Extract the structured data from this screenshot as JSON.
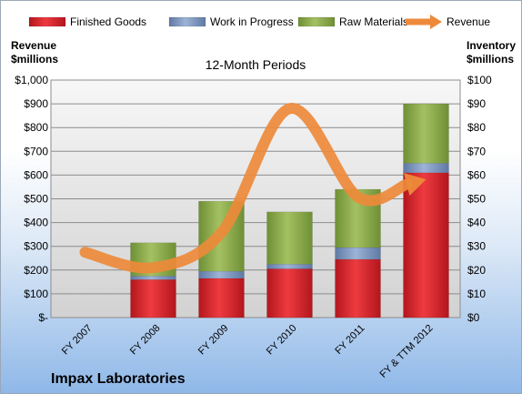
{
  "chart_data": {
    "type": "bar",
    "stacked": true,
    "title": "12-Month Periods",
    "company": "Impax Laboratories",
    "left_axis": {
      "label": [
        "Revenue",
        "$millions"
      ],
      "ylim": [
        0,
        1000
      ],
      "ticks": [
        {
          "v": 0,
          "label": "$-"
        },
        {
          "v": 100,
          "label": "$100"
        },
        {
          "v": 200,
          "label": "$200"
        },
        {
          "v": 300,
          "label": "$300"
        },
        {
          "v": 400,
          "label": "$400"
        },
        {
          "v": 500,
          "label": "$500"
        },
        {
          "v": 600,
          "label": "$600"
        },
        {
          "v": 700,
          "label": "$700"
        },
        {
          "v": 800,
          "label": "$800"
        },
        {
          "v": 900,
          "label": "$900"
        },
        {
          "v": 1000,
          "label": "$1,000"
        }
      ]
    },
    "right_axis": {
      "label": [
        "Inventory",
        "$millions"
      ],
      "ylim": [
        0,
        100
      ],
      "ticks": [
        {
          "v": 0,
          "label": "$0"
        },
        {
          "v": 10,
          "label": "$10"
        },
        {
          "v": 20,
          "label": "$20"
        },
        {
          "v": 30,
          "label": "$30"
        },
        {
          "v": 40,
          "label": "$40"
        },
        {
          "v": 50,
          "label": "$50"
        },
        {
          "v": 60,
          "label": "$60"
        },
        {
          "v": 70,
          "label": "$70"
        },
        {
          "v": 80,
          "label": "$80"
        },
        {
          "v": 90,
          "label": "$90"
        },
        {
          "v": 100,
          "label": "$100"
        }
      ]
    },
    "categories": [
      "FY 2007",
      "FY 2008",
      "FY 2009",
      "FY 2010",
      "FY 2011",
      "FY & TTM 2012"
    ],
    "series": [
      {
        "name": "Finished Goods",
        "axis": "right",
        "kind": "bar",
        "color": "#d9262e",
        "values": [
          null,
          16,
          16.5,
          20.5,
          24.5,
          61
        ]
      },
      {
        "name": "Work in Progress",
        "axis": "right",
        "kind": "bar",
        "color": "#7f97bd",
        "values": [
          null,
          1.5,
          3,
          2,
          5,
          4
        ]
      },
      {
        "name": "Raw Materials",
        "axis": "right",
        "kind": "bar",
        "color": "#8aa84a",
        "values": [
          null,
          14,
          29.5,
          22,
          24.5,
          25
        ]
      },
      {
        "name": "Revenue",
        "axis": "left",
        "kind": "line",
        "color": "#ed8a3a",
        "values": [
          275,
          210,
          358,
          880,
          508,
          582
        ]
      }
    ],
    "grid": true,
    "legend": "top"
  }
}
